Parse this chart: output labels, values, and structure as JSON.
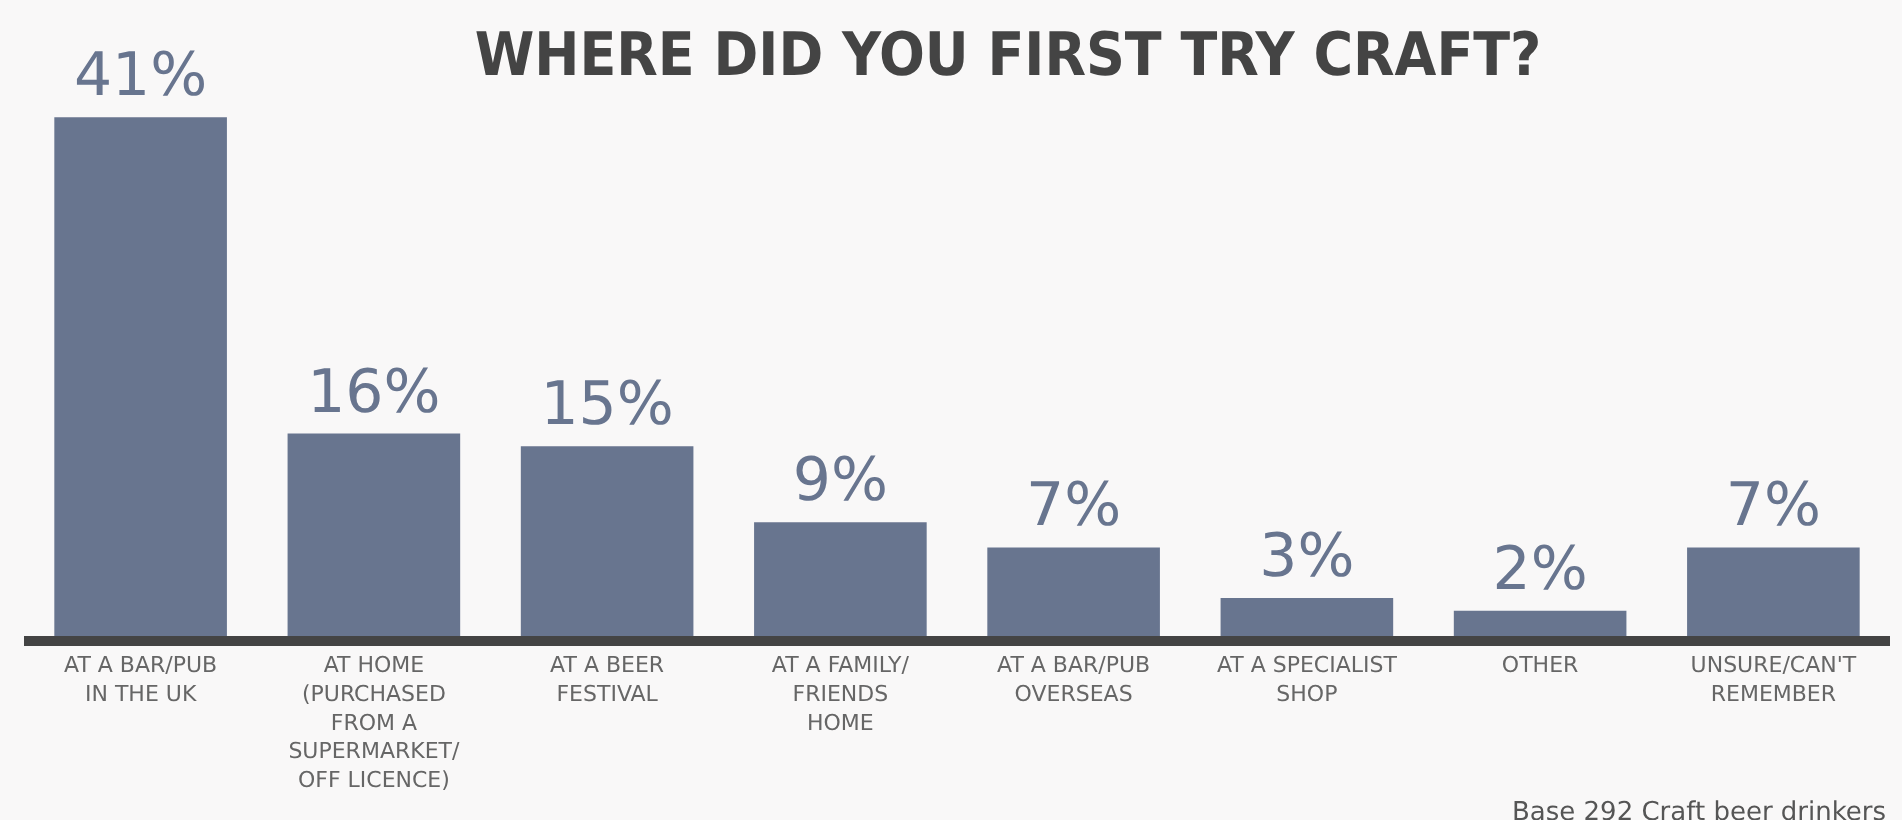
{
  "chart_data": {
    "type": "bar",
    "title": "WHERE DID YOU FIRST TRY CRAFT?",
    "categories": [
      "AT A BAR/PUB\nIN THE UK",
      "AT HOME\n(PURCHASED\nFROM A\nSUPERMARKET/\nOFF LICENCE)",
      "AT A BEER\nFESTIVAL",
      "AT A FAMILY/\nFRIENDS\nHOME",
      "AT A BAR/PUB\nOVERSEAS",
      "AT A SPECIALIST\nSHOP",
      "OTHER",
      "UNSURE/CAN'T\nREMEMBER"
    ],
    "values": [
      41,
      16,
      15,
      9,
      7,
      3,
      2,
      7
    ],
    "value_labels": [
      "41%",
      "16%",
      "15%",
      "9%",
      "7%",
      "3%",
      "2%",
      "7%"
    ],
    "color": "#68758f",
    "tick_labels": "x",
    "grid": false,
    "annotations": [
      "Base 292 Craft beer drinkers"
    ]
  }
}
